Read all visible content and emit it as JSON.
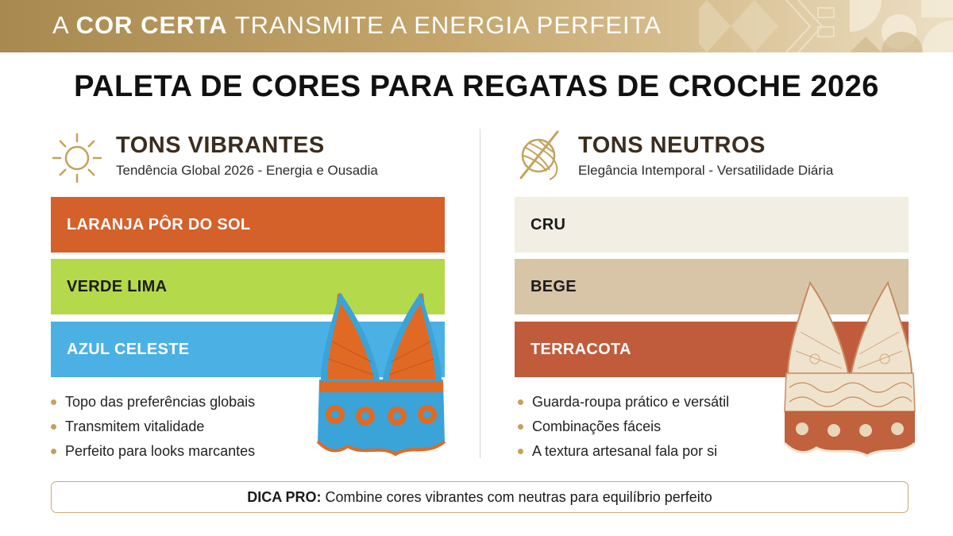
{
  "banner": {
    "prefix": "A ",
    "highlight": "COR CERTA",
    "suffix": " TRANSMITE A ENERGIA PERFEITA"
  },
  "title": "PALETA DE CORES PARA REGATAS DE CROCHE 2026",
  "vibrant": {
    "icon": "sun-icon",
    "title": "TONS VIBRANTES",
    "subtitle": "Tendência Global 2026 - Energia e Ousadia",
    "swatches": [
      {
        "label": "LARANJA PÔR DO SOL",
        "color": "#d4602a",
        "text_color": "#ffffff"
      },
      {
        "label": "VERDE LIMA",
        "color": "#b4d94a",
        "text_color": "#1b1b1b"
      },
      {
        "label": "AZUL CELESTE",
        "color": "#4bb0e4",
        "text_color": "#ffffff"
      }
    ],
    "bullets": [
      "Topo das preferências globais",
      "Transmitem vitalidade",
      "Perfeito para looks marcantes"
    ]
  },
  "neutral": {
    "icon": "yarn-ball-icon",
    "title": "TONS NEUTROS",
    "subtitle": "Elegância Intemporal - Versatilidade Diária",
    "swatches": [
      {
        "label": "CRU",
        "color": "#f2eee4",
        "text_color": "#1b1b1b"
      },
      {
        "label": "BEGE",
        "color": "#d8c5a7",
        "text_color": "#1b1b1b"
      },
      {
        "label": "TERRACOTA",
        "color": "#c05c3b",
        "text_color": "#ffffff"
      }
    ],
    "bullets": [
      "Guarda-roupa prático e versátil",
      "Combinações fáceis",
      "A textura artesanal fala por si"
    ]
  },
  "tip": {
    "label": "DICA PRO:",
    "text": "Combine cores vibrantes com neutras para equilíbrio perfeito"
  },
  "accent_color": "#c4a25c"
}
